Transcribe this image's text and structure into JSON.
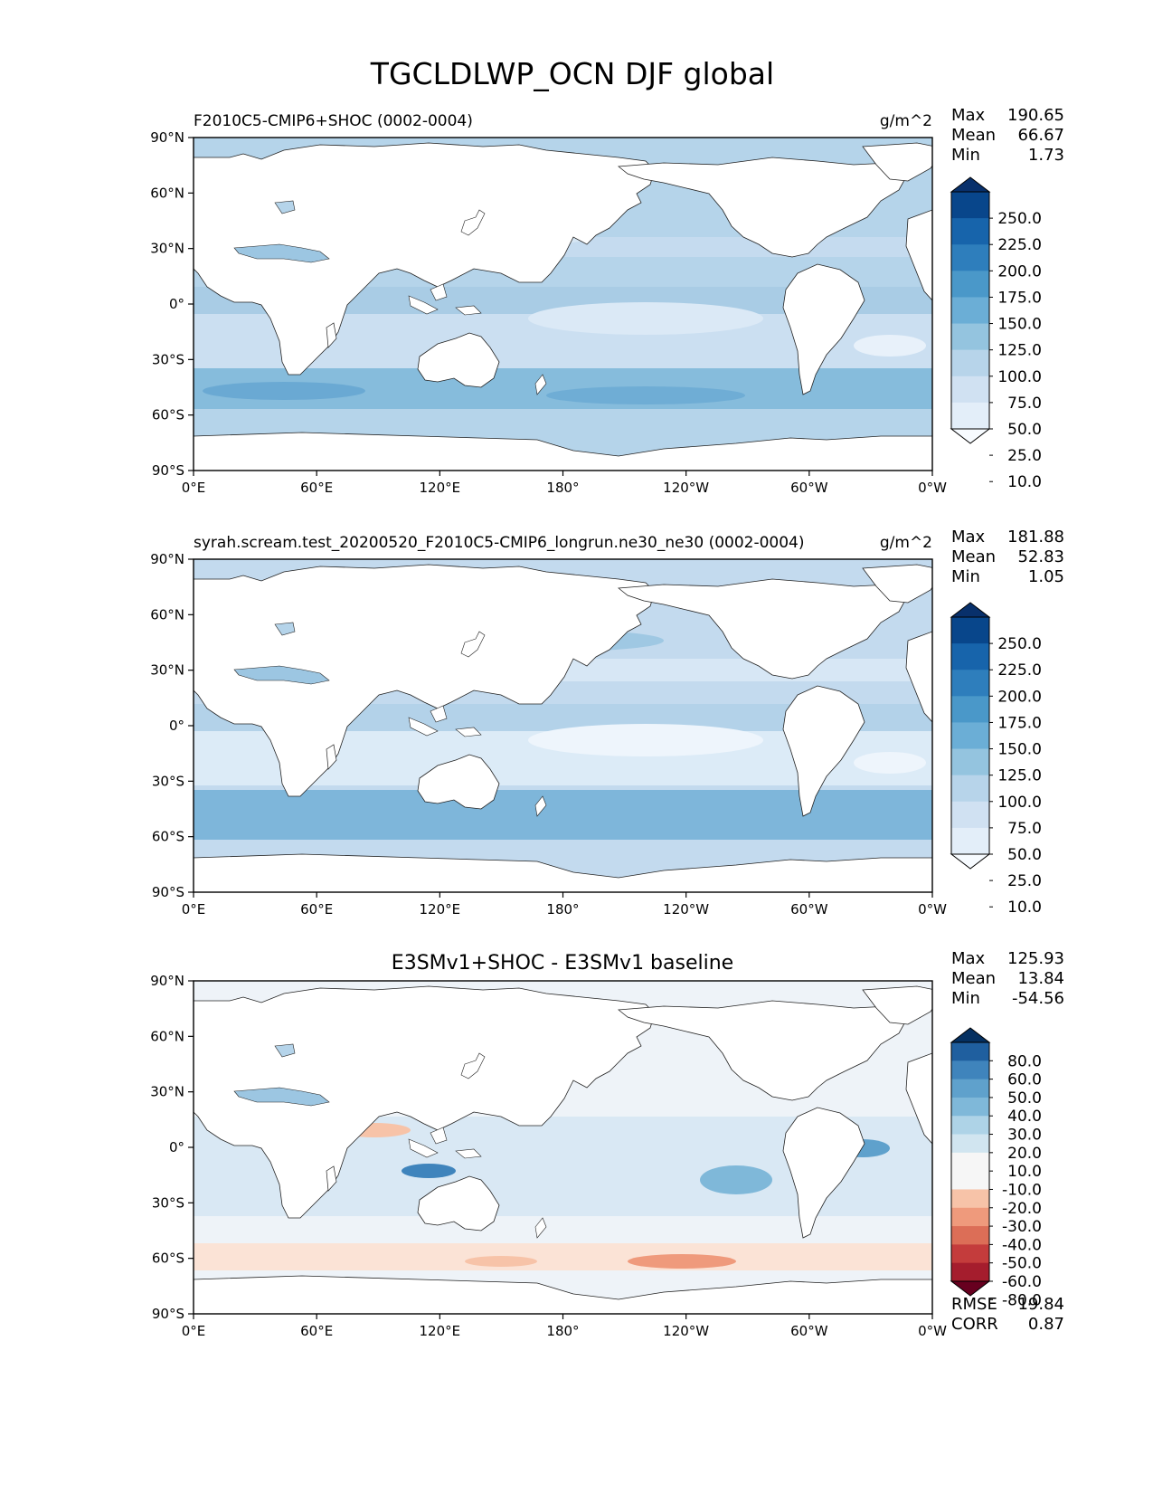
{
  "figure": {
    "title": "TGCLDLWP_OCN DJF global",
    "lat_ticks": [
      "90°N",
      "60°N",
      "30°N",
      "0°",
      "30°S",
      "60°S",
      "90°S"
    ],
    "lon_ticks": [
      "0°E",
      "60°E",
      "120°E",
      "180°",
      "120°W",
      "60°W",
      "0°W"
    ],
    "colors": {
      "blues": [
        "#f7fbff",
        "#e3eef9",
        "#d0e1f2",
        "#b7d4ea",
        "#94c4df",
        "#6baed6",
        "#4a98c9",
        "#2e7ebc",
        "#1764ab",
        "#08468b",
        "#08306b"
      ],
      "diff": [
        "#67001f",
        "#a51d2d",
        "#c43c3c",
        "#dc6e57",
        "#ef9a7c",
        "#f7c3a8",
        "#f6f6f6",
        "#f6f6f6",
        "#d1e5f0",
        "#aed3e7",
        "#7fb8d9",
        "#5fa1cc",
        "#3f84bc",
        "#1f5f9f",
        "#053061"
      ]
    }
  },
  "panels": [
    {
      "title": "F2010C5-CMIP6+SHOC (0002-0004)",
      "units": "g/m^2",
      "stats": {
        "max_label": "Max",
        "max": "190.65",
        "mean_label": "Mean",
        "mean": "66.67",
        "min_label": "Min",
        "min": "1.73"
      },
      "colorbar": {
        "ticks": [
          "250.0",
          "225.0",
          "200.0",
          "175.0",
          "150.0",
          "125.0",
          "100.0",
          "75.0",
          "50.0",
          "25.0",
          "10.0"
        ]
      }
    },
    {
      "title": "syrah.scream.test_20200520_F2010C5-CMIP6_longrun.ne30_ne30 (0002-0004)",
      "units": "g/m^2",
      "stats": {
        "max_label": "Max",
        "max": "181.88",
        "mean_label": "Mean",
        "mean": "52.83",
        "min_label": "Min",
        "min": "1.05"
      },
      "colorbar": {
        "ticks": [
          "250.0",
          "225.0",
          "200.0",
          "175.0",
          "150.0",
          "125.0",
          "100.0",
          "75.0",
          "50.0",
          "25.0",
          "10.0"
        ]
      }
    },
    {
      "title": "E3SMv1+SHOC - E3SMv1 baseline",
      "stats": {
        "max_label": "Max",
        "max": "125.93",
        "mean_label": "Mean",
        "mean": "13.84",
        "min_label": "Min",
        "min": "-54.56"
      },
      "colorbar": {
        "ticks": [
          "80.0",
          "60.0",
          "50.0",
          "40.0",
          "30.0",
          "20.0",
          "10.0",
          "-10.0",
          "-20.0",
          "-30.0",
          "-40.0",
          "-50.0",
          "-60.0",
          "-80.0"
        ]
      },
      "metrics": {
        "rmse_label": "RMSE",
        "rmse": "19.84",
        "corr_label": "CORR",
        "corr": "0.87"
      }
    }
  ]
}
